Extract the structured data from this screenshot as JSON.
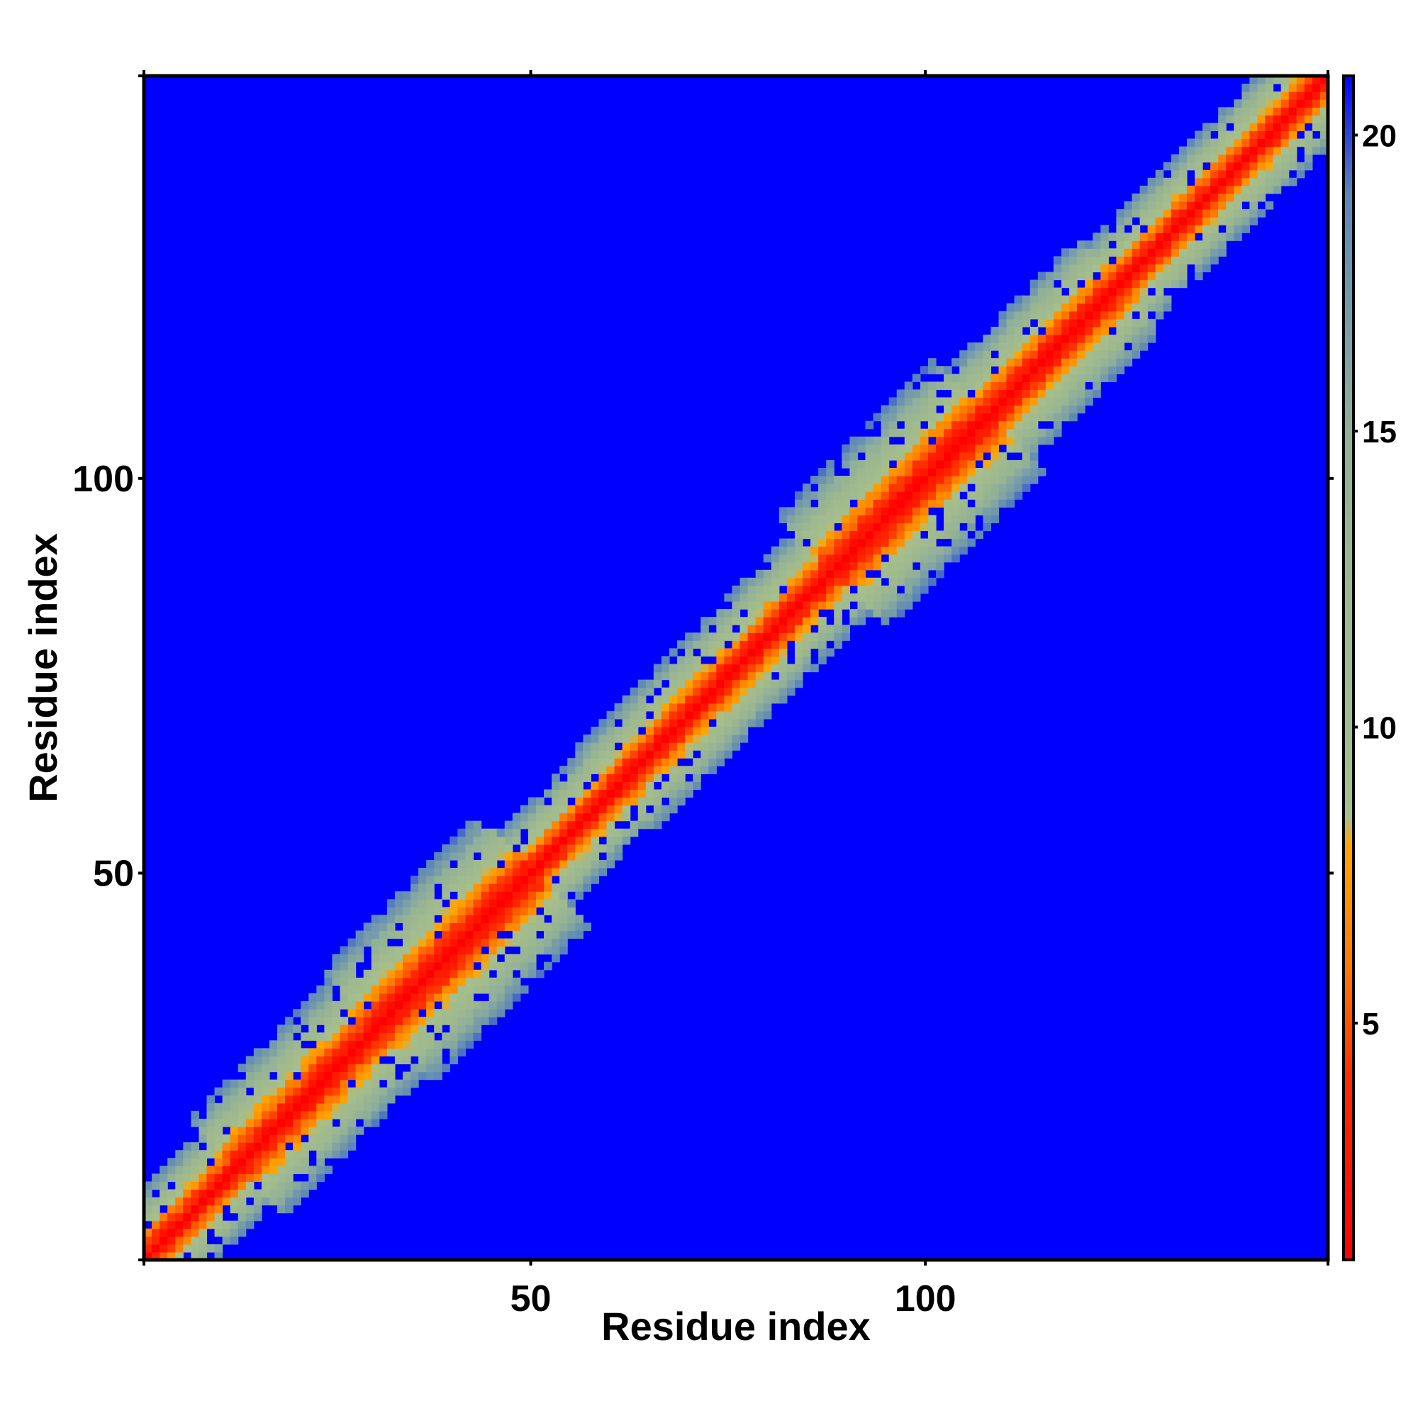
{
  "chart_data": {
    "type": "heatmap",
    "title": "",
    "xlabel": "Residue index",
    "ylabel": "Residue index",
    "n_residues": 151,
    "xlim": [
      1,
      151
    ],
    "ylim": [
      1,
      151
    ],
    "x_ticks": [
      50,
      100
    ],
    "y_ticks": [
      50,
      100
    ],
    "colorbar": {
      "range": [
        1,
        21
      ],
      "ticks": [
        5,
        10,
        15,
        20
      ],
      "stops": [
        {
          "value": 1,
          "color": "#ff0000"
        },
        {
          "value": 4,
          "color": "#ff2a00"
        },
        {
          "value": 6,
          "color": "#ff7a00"
        },
        {
          "value": 8,
          "color": "#ffa500"
        },
        {
          "value": 8.5,
          "color": "#a6bf8c"
        },
        {
          "value": 12,
          "color": "#9fb88e"
        },
        {
          "value": 15,
          "color": "#8faf9a"
        },
        {
          "value": 19,
          "color": "#5c87b8"
        },
        {
          "value": 21,
          "color": "#0000ff"
        }
      ]
    },
    "background_value": 21,
    "background_color": "#0000ff",
    "band": {
      "description_values": "distance increases with |i-j|; values above cutoff shown as background",
      "cutoff": 20,
      "segments": [
        {
          "from": 1,
          "to": 12,
          "width": 8
        },
        {
          "from": 12,
          "to": 30,
          "width": 11
        },
        {
          "from": 30,
          "to": 50,
          "width": 13
        },
        {
          "from": 50,
          "to": 60,
          "width": 8
        },
        {
          "from": 60,
          "to": 88,
          "width": 9
        },
        {
          "from": 88,
          "to": 108,
          "width": 13
        },
        {
          "from": 108,
          "to": 125,
          "width": 10
        },
        {
          "from": 125,
          "to": 151,
          "width": 8
        }
      ]
    },
    "grid": false,
    "legend": "colorbar-right"
  }
}
